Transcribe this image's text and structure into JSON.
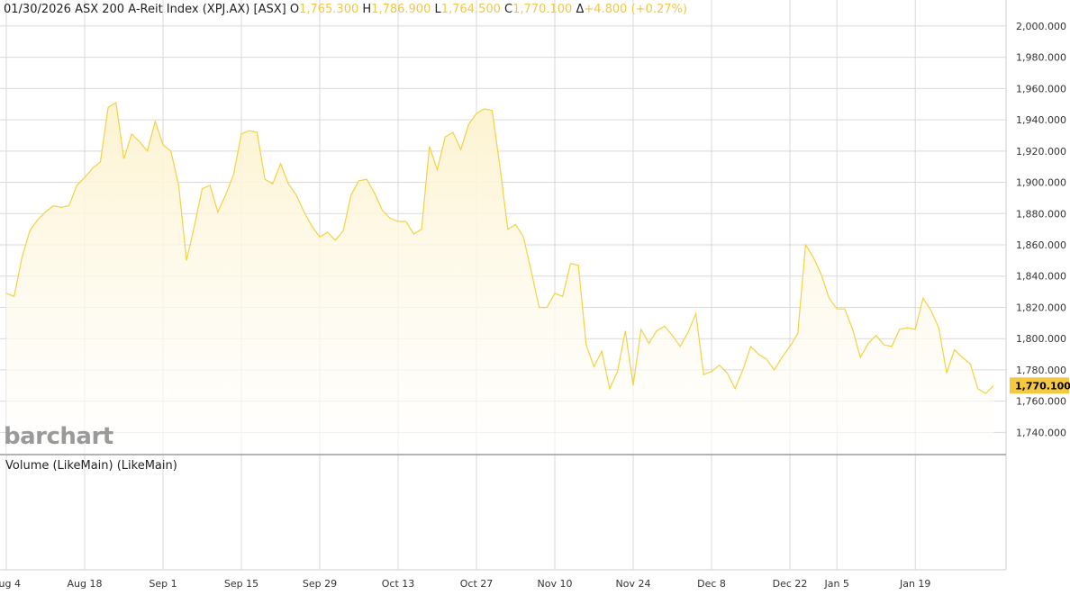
{
  "header": {
    "date": "01/30/2026",
    "name": "ASX 200 A-Reit Index (XPJ.AX) [ASX]",
    "open_label": "O",
    "open": "1,765.300",
    "high_label": "H",
    "high": "1,786.900",
    "low_label": "L",
    "low": "1,764.500",
    "close_label": "C",
    "close": "1,770.100",
    "change_label": "Δ",
    "change": "+4.800 (+0.27%)"
  },
  "volume_label": "Volume (LikeMain)  (LikeMain)",
  "logo_text": "barchart",
  "last_price_tag": "1,770.100",
  "colors": {
    "line": "#f5d142",
    "fill": "#fdf3d0",
    "tag": "#f5c842",
    "grid": "#d9d9d9",
    "header_values": "#f2c744"
  },
  "chart_data": {
    "type": "area",
    "ylim": [
      1730,
      2005
    ],
    "yticks": [
      1740,
      1760,
      1780,
      1800,
      1820,
      1840,
      1860,
      1880,
      1900,
      1920,
      1940,
      1960,
      1980,
      2000
    ],
    "ytick_labels": [
      "1,740.000",
      "1,760.000",
      "1,780.000",
      "1,800.000",
      "1,820.000",
      "1,840.000",
      "1,860.000",
      "1,880.000",
      "1,900.000",
      "1,920.000",
      "1,940.000",
      "1,960.000",
      "1,980.000",
      "2,000.000"
    ],
    "xticks": [
      {
        "label": "Aug 4",
        "index": 0
      },
      {
        "label": "Aug 18",
        "index": 10
      },
      {
        "label": "Sep 1",
        "index": 20
      },
      {
        "label": "Sep 15",
        "index": 30
      },
      {
        "label": "Sep 29",
        "index": 40
      },
      {
        "label": "Oct 13",
        "index": 50
      },
      {
        "label": "Oct 27",
        "index": 60
      },
      {
        "label": "Nov 10",
        "index": 70
      },
      {
        "label": "Nov 24",
        "index": 80
      },
      {
        "label": "Dec 8",
        "index": 90
      },
      {
        "label": "Dec 22",
        "index": 100
      },
      {
        "label": "Jan 5",
        "index": 106
      },
      {
        "label": "Jan 19",
        "index": 116
      }
    ],
    "num_slots": 127,
    "grid": true,
    "series": [
      {
        "values": [
          1829,
          1827,
          1852,
          1869,
          1876,
          1881,
          1885,
          1884,
          1885,
          1898,
          1903,
          1909,
          1913,
          1948,
          1951,
          1915,
          1931,
          1926,
          1920,
          1939,
          1924,
          1920,
          1898,
          1850,
          1872,
          1896,
          1898,
          1881,
          1892,
          1905,
          1931,
          1933,
          1932,
          1902,
          1899,
          1912,
          1899,
          1892,
          1881,
          1872,
          1865,
          1868,
          1863,
          1869,
          1892,
          1901,
          1902,
          1893,
          1882,
          1877,
          1875,
          1875,
          1867,
          1870,
          1923,
          1908,
          1929,
          1932,
          1921,
          1937,
          1944,
          1947,
          1946,
          1910,
          1870,
          1873,
          1865,
          1843,
          1820,
          1820,
          1829,
          1827,
          1848,
          1847,
          1796,
          1782,
          1792,
          1768,
          1779,
          1805,
          1770,
          1806,
          1797,
          1805,
          1808,
          1802,
          1795,
          1804,
          1816,
          1777,
          1779,
          1783,
          1778,
          1768,
          1780,
          1795,
          1790,
          1787,
          1780,
          1788,
          1795,
          1803,
          1860,
          1852,
          1841,
          1826,
          1819,
          1819,
          1806,
          1788,
          1797,
          1802,
          1796,
          1795,
          1806,
          1807,
          1806,
          1826,
          1818,
          1807,
          1778,
          1793,
          1788,
          1784,
          1768,
          1765,
          1770
        ]
      }
    ]
  }
}
